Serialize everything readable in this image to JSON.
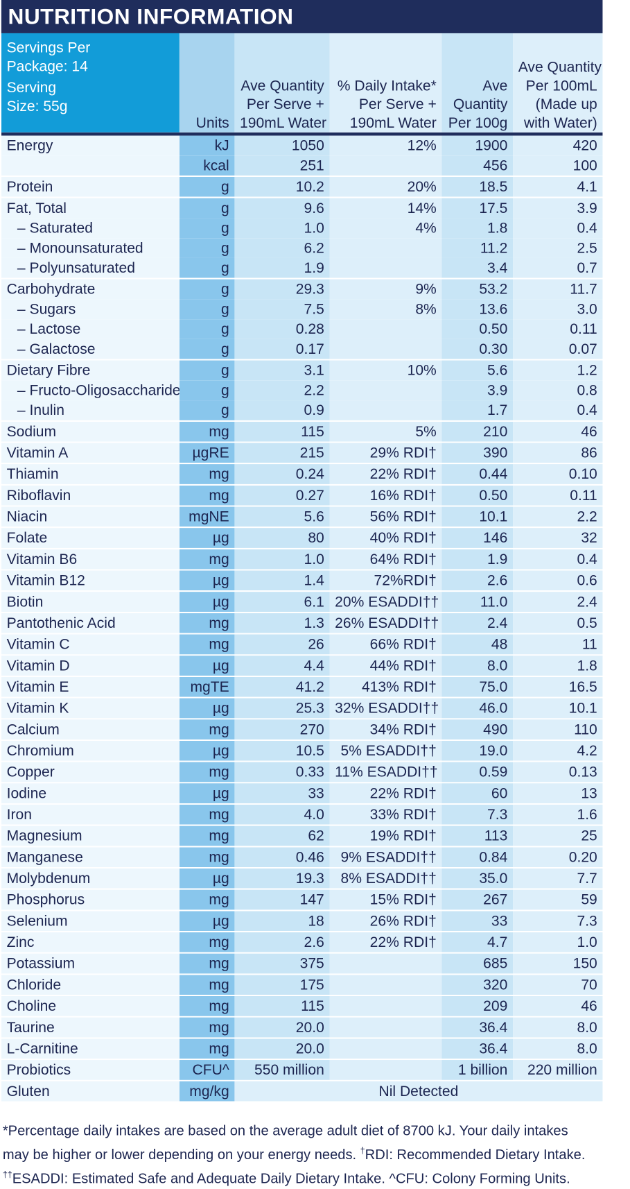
{
  "title": "NUTRITION INFORMATION",
  "header": {
    "servings_line1": "Servings Per",
    "servings_line2": "Package: 14",
    "serving_line1": "Serving",
    "serving_line2": "Size: 55g",
    "units": "Units",
    "per_serve_line1": "Ave Quantity",
    "per_serve_line2": "Per Serve +",
    "per_serve_line3": "190mL Water",
    "di_line1": "% Daily Intake*",
    "di_line2": "Per Serve +",
    "di_line3": "190mL Water",
    "per100g_line1": "Ave",
    "per100g_line2": "Quantity",
    "per100g_line3": "Per 100g",
    "per100ml_line1": "Ave Quantity",
    "per100ml_line2": "Per 100mL",
    "per100ml_line3": "(Made up",
    "per100ml_line4": "with Water)"
  },
  "rows": [
    {
      "name": "Energy",
      "unit": "kJ",
      "serve": "1050",
      "di": "12%",
      "per100g": "1900",
      "per100ml": "420",
      "sub": false,
      "gs": false
    },
    {
      "name": "",
      "unit": "kcal",
      "serve": "251",
      "di": "",
      "per100g": "456",
      "per100ml": "100",
      "sub": false,
      "gs": false
    },
    {
      "name": "Protein",
      "unit": "g",
      "serve": "10.2",
      "di": "20%",
      "per100g": "18.5",
      "per100ml": "4.1",
      "sub": false,
      "gs": true
    },
    {
      "name": "Fat, Total",
      "unit": "g",
      "serve": "9.6",
      "di": "14%",
      "per100g": "17.5",
      "per100ml": "3.9",
      "sub": false,
      "gs": true
    },
    {
      "name": "– Saturated",
      "unit": "g",
      "serve": "1.0",
      "di": "4%",
      "per100g": "1.8",
      "per100ml": "0.4",
      "sub": true,
      "gs": false
    },
    {
      "name": "– Monounsaturated",
      "unit": "g",
      "serve": "6.2",
      "di": "",
      "per100g": "11.2",
      "per100ml": "2.5",
      "sub": true,
      "gs": false
    },
    {
      "name": "– Polyunsaturated",
      "unit": "g",
      "serve": "1.9",
      "di": "",
      "per100g": "3.4",
      "per100ml": "0.7",
      "sub": true,
      "gs": false
    },
    {
      "name": "Carbohydrate",
      "unit": "g",
      "serve": "29.3",
      "di": "9%",
      "per100g": "53.2",
      "per100ml": "11.7",
      "sub": false,
      "gs": true
    },
    {
      "name": "– Sugars",
      "unit": "g",
      "serve": "7.5",
      "di": "8%",
      "per100g": "13.6",
      "per100ml": "3.0",
      "sub": true,
      "gs": false
    },
    {
      "name": "– Lactose",
      "unit": "g",
      "serve": "0.28",
      "di": "",
      "per100g": "0.50",
      "per100ml": "0.11",
      "sub": true,
      "gs": false
    },
    {
      "name": "– Galactose",
      "unit": "g",
      "serve": "0.17",
      "di": "",
      "per100g": "0.30",
      "per100ml": "0.07",
      "sub": true,
      "gs": false
    },
    {
      "name": "Dietary Fibre",
      "unit": "g",
      "serve": "3.1",
      "di": "10%",
      "per100g": "5.6",
      "per100ml": "1.2",
      "sub": false,
      "gs": true
    },
    {
      "name": "– Fructo-Oligosaccharide",
      "unit": "g",
      "serve": "2.2",
      "di": "",
      "per100g": "3.9",
      "per100ml": "0.8",
      "sub": true,
      "gs": false
    },
    {
      "name": "– Inulin",
      "unit": "g",
      "serve": "0.9",
      "di": "",
      "per100g": "1.7",
      "per100ml": "0.4",
      "sub": true,
      "gs": false
    },
    {
      "name": "Sodium",
      "unit": "mg",
      "serve": "115",
      "di": "5%",
      "per100g": "210",
      "per100ml": "46",
      "sub": false,
      "gs": true
    },
    {
      "name": "Vitamin A",
      "unit": "µgRE",
      "serve": "215",
      "di": "29% RDI†",
      "per100g": "390",
      "per100ml": "86",
      "sub": false,
      "gs": true
    },
    {
      "name": "Thiamin",
      "unit": "mg",
      "serve": "0.24",
      "di": "22% RDI†",
      "per100g": "0.44",
      "per100ml": "0.10",
      "sub": false,
      "gs": true
    },
    {
      "name": "Riboflavin",
      "unit": "mg",
      "serve": "0.27",
      "di": "16% RDI†",
      "per100g": "0.50",
      "per100ml": "0.11",
      "sub": false,
      "gs": true
    },
    {
      "name": "Niacin",
      "unit": "mgNE",
      "serve": "5.6",
      "di": "56% RDI†",
      "per100g": "10.1",
      "per100ml": "2.2",
      "sub": false,
      "gs": true
    },
    {
      "name": "Folate",
      "unit": "µg",
      "serve": "80",
      "di": "40% RDI†",
      "per100g": "146",
      "per100ml": "32",
      "sub": false,
      "gs": true
    },
    {
      "name": "Vitamin B6",
      "unit": "mg",
      "serve": "1.0",
      "di": "64% RDI†",
      "per100g": "1.9",
      "per100ml": "0.4",
      "sub": false,
      "gs": true
    },
    {
      "name": "Vitamin B12",
      "unit": "µg",
      "serve": "1.4",
      "di": "72%RDI†",
      "per100g": "2.6",
      "per100ml": "0.6",
      "sub": false,
      "gs": true
    },
    {
      "name": "Biotin",
      "unit": "µg",
      "serve": "6.1",
      "di": "20% ESADDI††",
      "per100g": "11.0",
      "per100ml": "2.4",
      "sub": false,
      "gs": true
    },
    {
      "name": "Pantothenic Acid",
      "unit": "mg",
      "serve": "1.3",
      "di": "26% ESADDI††",
      "per100g": "2.4",
      "per100ml": "0.5",
      "sub": false,
      "gs": true
    },
    {
      "name": "Vitamin C",
      "unit": "mg",
      "serve": "26",
      "di": "66% RDI†",
      "per100g": "48",
      "per100ml": "11",
      "sub": false,
      "gs": true
    },
    {
      "name": "Vitamin D",
      "unit": "µg",
      "serve": "4.4",
      "di": "44% RDI†",
      "per100g": "8.0",
      "per100ml": "1.8",
      "sub": false,
      "gs": true
    },
    {
      "name": "Vitamin E",
      "unit": "mgTE",
      "serve": "41.2",
      "di": "413% RDI†",
      "per100g": "75.0",
      "per100ml": "16.5",
      "sub": false,
      "gs": true
    },
    {
      "name": "Vitamin K",
      "unit": "µg",
      "serve": "25.3",
      "di": "32% ESADDI††",
      "per100g": "46.0",
      "per100ml": "10.1",
      "sub": false,
      "gs": true
    },
    {
      "name": "Calcium",
      "unit": "mg",
      "serve": "270",
      "di": "34% RDI†",
      "per100g": "490",
      "per100ml": "110",
      "sub": false,
      "gs": true
    },
    {
      "name": "Chromium",
      "unit": "µg",
      "serve": "10.5",
      "di": "5% ESADDI††",
      "per100g": "19.0",
      "per100ml": "4.2",
      "sub": false,
      "gs": true
    },
    {
      "name": "Copper",
      "unit": "mg",
      "serve": "0.33",
      "di": "11% ESADDI††",
      "per100g": "0.59",
      "per100ml": "0.13",
      "sub": false,
      "gs": true
    },
    {
      "name": "Iodine",
      "unit": "µg",
      "serve": "33",
      "di": "22% RDI†",
      "per100g": "60",
      "per100ml": "13",
      "sub": false,
      "gs": true
    },
    {
      "name": "Iron",
      "unit": "mg",
      "serve": "4.0",
      "di": "33% RDI†",
      "per100g": "7.3",
      "per100ml": "1.6",
      "sub": false,
      "gs": true
    },
    {
      "name": "Magnesium",
      "unit": "mg",
      "serve": "62",
      "di": "19% RDI†",
      "per100g": "113",
      "per100ml": "25",
      "sub": false,
      "gs": true
    },
    {
      "name": "Manganese",
      "unit": "mg",
      "serve": "0.46",
      "di": "9% ESADDI††",
      "per100g": "0.84",
      "per100ml": "0.20",
      "sub": false,
      "gs": true
    },
    {
      "name": "Molybdenum",
      "unit": "µg",
      "serve": "19.3",
      "di": "8% ESADDI††",
      "per100g": "35.0",
      "per100ml": "7.7",
      "sub": false,
      "gs": true
    },
    {
      "name": "Phosphorus",
      "unit": "mg",
      "serve": "147",
      "di": "15% RDI†",
      "per100g": "267",
      "per100ml": "59",
      "sub": false,
      "gs": true
    },
    {
      "name": "Selenium",
      "unit": "µg",
      "serve": "18",
      "di": "26% RDI†",
      "per100g": "33",
      "per100ml": "7.3",
      "sub": false,
      "gs": true
    },
    {
      "name": "Zinc",
      "unit": "mg",
      "serve": "2.6",
      "di": "22% RDI†",
      "per100g": "4.7",
      "per100ml": "1.0",
      "sub": false,
      "gs": true
    },
    {
      "name": "Potassium",
      "unit": "mg",
      "serve": "375",
      "di": "",
      "per100g": "685",
      "per100ml": "150",
      "sub": false,
      "gs": true
    },
    {
      "name": "Chloride",
      "unit": "mg",
      "serve": "175",
      "di": "",
      "per100g": "320",
      "per100ml": "70",
      "sub": false,
      "gs": true
    },
    {
      "name": "Choline",
      "unit": "mg",
      "serve": "115",
      "di": "",
      "per100g": "209",
      "per100ml": "46",
      "sub": false,
      "gs": true
    },
    {
      "name": "Taurine",
      "unit": "mg",
      "serve": "20.0",
      "di": "",
      "per100g": "36.4",
      "per100ml": "8.0",
      "sub": false,
      "gs": true
    },
    {
      "name": "L-Carnitine",
      "unit": "mg",
      "serve": "20.0",
      "di": "",
      "per100g": "36.4",
      "per100ml": "8.0",
      "sub": false,
      "gs": true
    },
    {
      "name": "Probiotics",
      "unit": "CFU^",
      "serve": "550 million",
      "di": "",
      "per100g": "1 billion",
      "per100ml": "220 million",
      "sub": false,
      "gs": true
    }
  ],
  "gluten": {
    "name": "Gluten",
    "unit": "mg/kg",
    "value": "Nil Detected"
  },
  "footnote": {
    "line1": "*Percentage daily intakes are based on the average adult diet of 8700 kJ. Your daily intakes",
    "line2_a": "may be higher or lower depending on your energy needs. ",
    "line2_sup": "†",
    "line2_b": "RDI: Recommended Dietary Intake.",
    "line3_sup": "††",
    "line3_b": "ESADDI: Estimated Safe and Adequate Daily Dietary Intake. ^CFU: Colony Forming Units."
  }
}
